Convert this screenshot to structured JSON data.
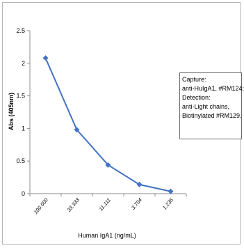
{
  "chart_data": {
    "type": "line",
    "categories": [
      "100.000",
      "33.333",
      "11.111",
      "3.704",
      "1.235"
    ],
    "series": [
      {
        "values": [
          2.08,
          0.98,
          0.44,
          0.14,
          0.035
        ],
        "color": "#4472c4"
      }
    ],
    "xlabel": "Human IgA1 (ng/mL)",
    "ylabel": "Abs (405nm)",
    "ylim": [
      0,
      2.5
    ],
    "yticks": [
      0,
      0.5,
      1,
      1.5,
      2,
      2.5
    ],
    "ytick_labels": [
      "0",
      "0.5",
      "1",
      "1.5",
      "2",
      "2.5"
    ],
    "grid": false,
    "legend": "none",
    "annotation": [
      "Capture:",
      "anti-HuIgA1, #RM124;",
      "Detection:",
      "anti-Light chains,",
      "Biotinylated #RM129."
    ]
  }
}
